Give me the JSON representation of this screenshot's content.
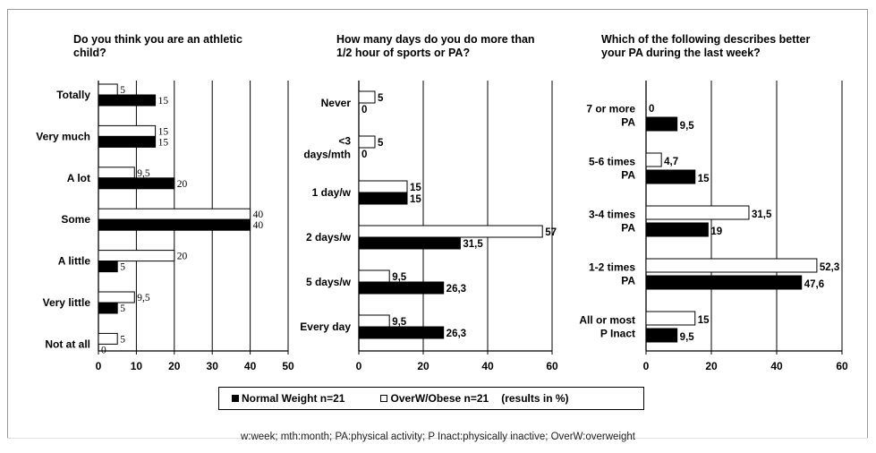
{
  "legend": {
    "normal": "Normal Weight n=21",
    "overweight": "OverW/Obese n=21",
    "note": "(results in %)"
  },
  "footnote": "w:week; mth:month; PA:physical activity; P Inact:physically inactive; OverW:overweight",
  "colors": {
    "normal": "#000000",
    "overweight": "#ffffff"
  },
  "chart_data": [
    {
      "type": "bar",
      "orientation": "horizontal",
      "title_lines": [
        "Do you think you are an athletic",
        "child?"
      ],
      "categories": [
        [
          "Totally"
        ],
        [
          "Very much"
        ],
        [
          "A lot"
        ],
        [
          "Some"
        ],
        [
          "A little"
        ],
        [
          "Very little"
        ],
        [
          "Not at all"
        ]
      ],
      "series": [
        {
          "name": "OverW/Obese n=21",
          "values": [
            5,
            15,
            9.5,
            40,
            20,
            9.5,
            5
          ],
          "labels": [
            "5",
            "15",
            "9,5",
            "40",
            "20",
            "9,5",
            "5"
          ]
        },
        {
          "name": "Normal Weight n=21",
          "values": [
            15,
            15,
            20,
            40,
            5,
            5,
            0
          ],
          "labels": [
            "15",
            "15",
            "20",
            "40",
            "5",
            "5",
            "0"
          ]
        }
      ],
      "xlim": [
        0,
        50
      ],
      "xticks": [
        "0",
        "10",
        "20",
        "30",
        "40",
        "50"
      ],
      "grid": true
    },
    {
      "type": "bar",
      "orientation": "horizontal",
      "title_lines": [
        "How many days do you do more than",
        "1/2 hour of sports or PA?"
      ],
      "categories": [
        [
          "Never"
        ],
        [
          "<3",
          "days/mth"
        ],
        [
          "1 day/w"
        ],
        [
          "2 days/w"
        ],
        [
          "5 days/w"
        ],
        [
          "Every day"
        ]
      ],
      "series": [
        {
          "name": "OverW/Obese n=21",
          "values": [
            5,
            5,
            15,
            57,
            9.5,
            9.5
          ],
          "labels": [
            "5",
            "5",
            "15",
            "57",
            "9,5",
            "9,5"
          ]
        },
        {
          "name": "Normal Weight n=21",
          "values": [
            0,
            0,
            15,
            31.5,
            26.3,
            26.3
          ],
          "labels": [
            "0",
            "0",
            "15",
            "31,5",
            "26,3",
            "26,3"
          ]
        }
      ],
      "xlim": [
        0,
        60
      ],
      "xticks": [
        "0",
        "20",
        "40",
        "60"
      ],
      "grid": true
    },
    {
      "type": "bar",
      "orientation": "horizontal",
      "title_lines": [
        "Which of the following describes better",
        "your PA during the last week?"
      ],
      "categories": [
        [
          "7 or more",
          "PA"
        ],
        [
          "5-6 times",
          "PA"
        ],
        [
          "3-4 times",
          "PA"
        ],
        [
          "1-2 times",
          "PA"
        ],
        [
          "All or most",
          "P Inact"
        ]
      ],
      "series": [
        {
          "name": "OverW/Obese n=21",
          "values": [
            0,
            4.7,
            31.5,
            52.3,
            15
          ],
          "labels": [
            "0",
            "4,7",
            "31,5",
            "52,3",
            "15"
          ]
        },
        {
          "name": "Normal Weight n=21",
          "values": [
            9.5,
            15,
            19,
            47.6,
            9.5
          ],
          "labels": [
            "9,5",
            "15",
            "19",
            "47,6",
            "9,5"
          ]
        }
      ],
      "xlim": [
        0,
        60
      ],
      "xticks": [
        "0",
        "20",
        "40",
        "60"
      ],
      "grid": true
    }
  ]
}
